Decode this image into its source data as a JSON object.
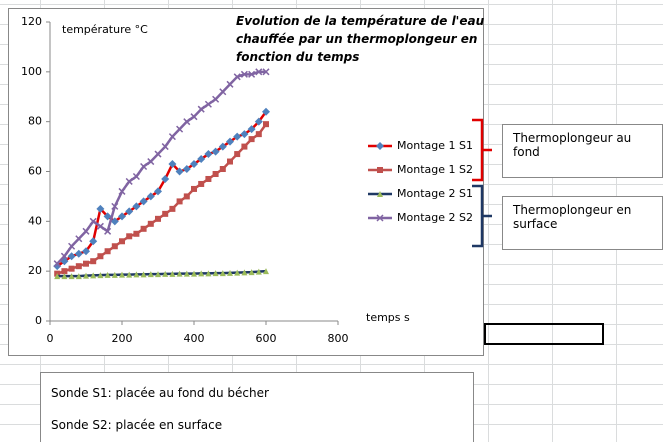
{
  "chart_data": {
    "type": "line",
    "title": "Evolution de la température de l'eau chauffée par un thermoplongeur en fonction du temps",
    "y_label": "température °C",
    "x_label": "temps s",
    "x": [
      20,
      40,
      60,
      80,
      100,
      120,
      140,
      160,
      180,
      200,
      220,
      240,
      260,
      280,
      300,
      320,
      340,
      360,
      380,
      400,
      420,
      440,
      460,
      480,
      500,
      520,
      540,
      560,
      580,
      600
    ],
    "series": [
      {
        "name": "Montage 1 S1",
        "color": "#e00000",
        "marker": "diamond",
        "marker_color": "#4f81bd",
        "values": [
          22,
          24,
          26,
          27,
          28,
          32,
          45,
          42,
          40,
          42,
          44,
          46,
          48,
          50,
          52,
          57,
          63,
          60,
          61,
          63,
          65,
          67,
          68,
          70,
          72,
          74,
          75,
          77,
          80,
          84
        ]
      },
      {
        "name": "Montage 1 S2",
        "color": "#c0504d",
        "marker": "square",
        "marker_color": "#c0504d",
        "values": [
          19,
          20,
          21,
          22,
          23,
          24,
          26,
          28,
          30,
          32,
          34,
          35,
          37,
          39,
          41,
          43,
          45,
          48,
          50,
          53,
          55,
          57,
          59,
          61,
          64,
          67,
          70,
          73,
          75,
          79
        ]
      },
      {
        "name": "Montage 2 S1",
        "color": "#1f3864",
        "marker": "triangle",
        "marker_color": "#9bbb59",
        "values": [
          18,
          18,
          18,
          18,
          18.2,
          18.3,
          18.4,
          18.5,
          18.5,
          18.6,
          18.6,
          18.7,
          18.7,
          18.8,
          18.8,
          18.9,
          18.9,
          19,
          19,
          19,
          19.1,
          19.1,
          19.2,
          19.2,
          19.3,
          19.4,
          19.5,
          19.6,
          19.8,
          20
        ]
      },
      {
        "name": "Montage 2 S2",
        "color": "#8064a2",
        "marker": "x",
        "marker_color": "#8064a2",
        "values": [
          23,
          26,
          30,
          33,
          36,
          40,
          38,
          36,
          46,
          52,
          56,
          58,
          62,
          64,
          67,
          70,
          74,
          77,
          80,
          82,
          85,
          87,
          89,
          92,
          95,
          98,
          99,
          99,
          100,
          100
        ]
      }
    ],
    "xlim": [
      0,
      800
    ],
    "ylim": [
      0,
      120
    ],
    "xticks": [
      0,
      200,
      400,
      600,
      800
    ],
    "yticks": [
      0,
      20,
      40,
      60,
      80,
      100,
      120
    ],
    "grid": false,
    "legend": "right"
  },
  "callouts": [
    "Thermoplongeur au fond",
    "Thermoplongeur en surface"
  ],
  "text_box": [
    "Sonde S1: placée au fond du bécher",
    "Sonde S2: placée en surface"
  ]
}
